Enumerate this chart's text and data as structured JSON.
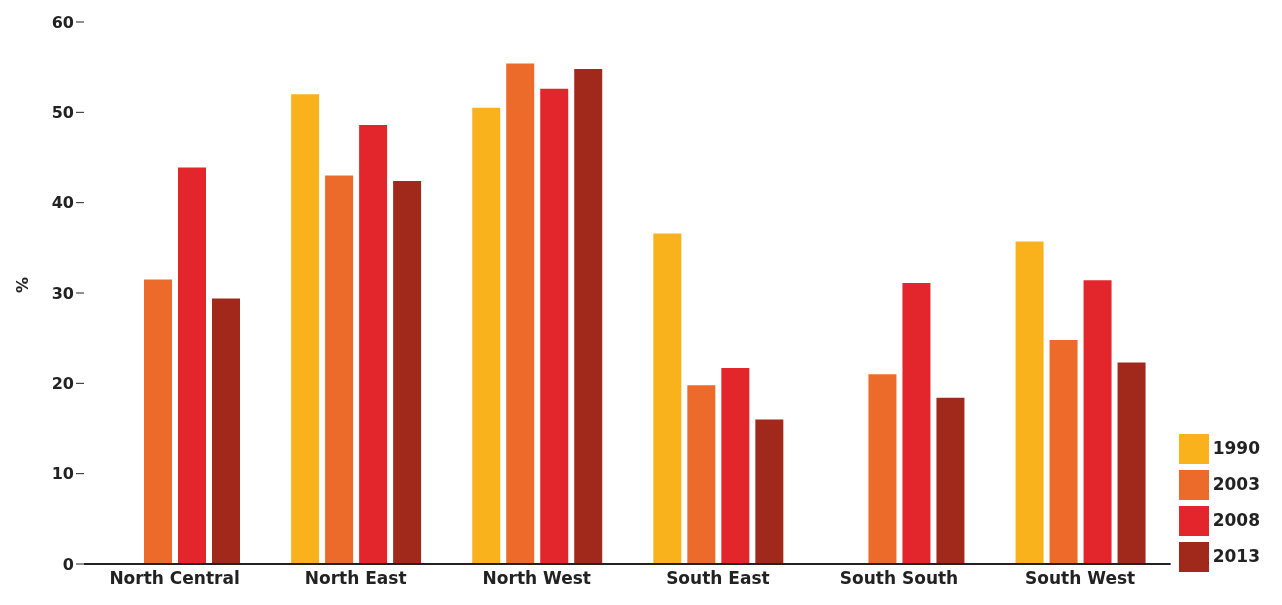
{
  "chart_data": {
    "type": "bar",
    "ylabel": "%",
    "categories": [
      "North Central",
      "North East",
      "North West",
      "South East",
      "South South",
      "South West"
    ],
    "series": [
      {
        "name": "1990",
        "color": "#f9b21b",
        "values": [
          null,
          52.0,
          50.5,
          36.6,
          null,
          35.7
        ]
      },
      {
        "name": "2003",
        "color": "#ec6a2a",
        "values": [
          31.5,
          43.0,
          55.4,
          19.8,
          21.0,
          24.8
        ]
      },
      {
        "name": "2008",
        "color": "#e3262b",
        "values": [
          43.9,
          48.6,
          52.6,
          21.7,
          31.1,
          31.4
        ]
      },
      {
        "name": "2013",
        "color": "#a1291b",
        "values": [
          29.4,
          42.4,
          54.8,
          16.0,
          18.4,
          22.3
        ]
      }
    ],
    "ylim": [
      0,
      60
    ],
    "yticks": [
      0,
      10,
      20,
      30,
      40,
      50,
      60
    ],
    "grid": false,
    "legend": "bottom right"
  }
}
